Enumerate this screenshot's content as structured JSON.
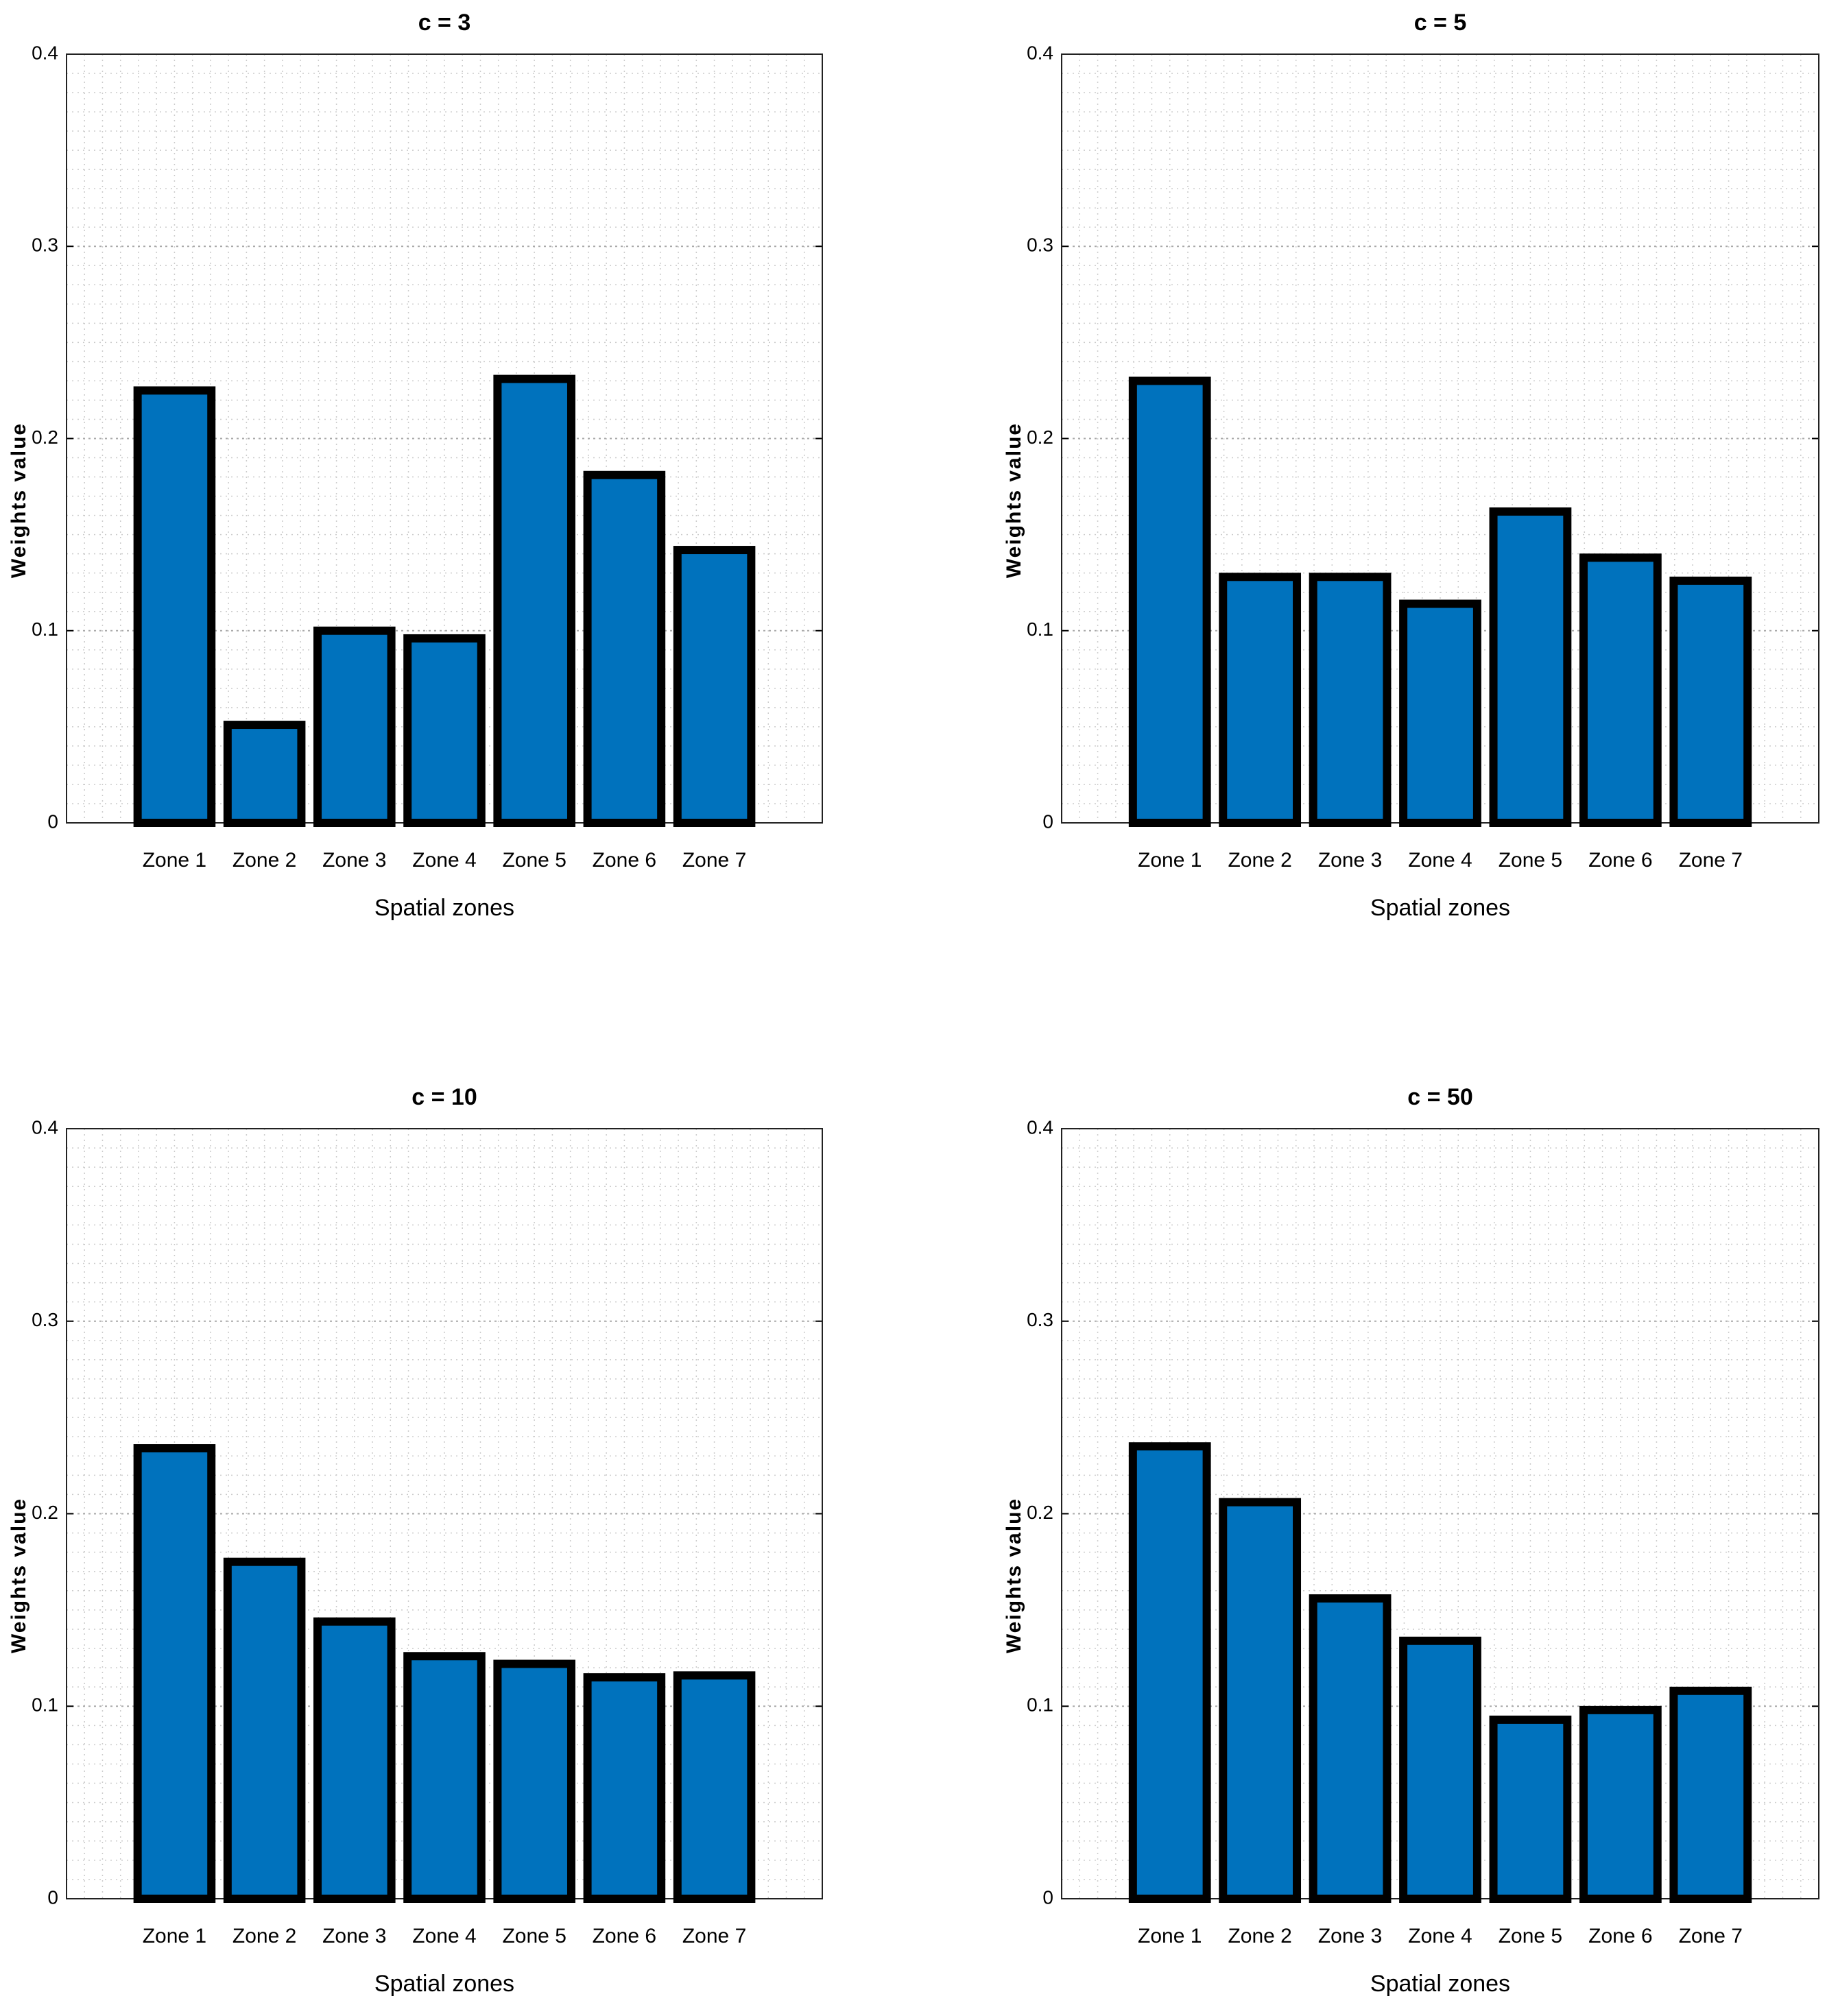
{
  "chart_data": [
    {
      "type": "bar",
      "title": "c = 3",
      "xlabel": "Spatial zones",
      "ylabel": "Weights value",
      "categories": [
        "Zone 1",
        "Zone 2",
        "Zone 3",
        "Zone 4",
        "Zone 5",
        "Zone 6",
        "Zone 7"
      ],
      "values": [
        0.225,
        0.051,
        0.1,
        0.096,
        0.231,
        0.181,
        0.142
      ],
      "color": "#0072bd",
      "ylim": [
        0,
        0.4
      ],
      "yticks": [
        0,
        0.1,
        0.2,
        0.3,
        0.4
      ],
      "grid": true
    },
    {
      "type": "bar",
      "title": "c = 5",
      "xlabel": "Spatial zones",
      "ylabel": "Weights value",
      "categories": [
        "Zone 1",
        "Zone 2",
        "Zone 3",
        "Zone 4",
        "Zone 5",
        "Zone 6",
        "Zone 7"
      ],
      "values": [
        0.23,
        0.128,
        0.128,
        0.114,
        0.162,
        0.138,
        0.126
      ],
      "color": "#0072bd",
      "ylim": [
        0,
        0.4
      ],
      "yticks": [
        0,
        0.1,
        0.2,
        0.3,
        0.4
      ],
      "grid": true
    },
    {
      "type": "bar",
      "title": "c = 10",
      "xlabel": "Spatial zones",
      "ylabel": "Weights value",
      "categories": [
        "Zone 1",
        "Zone 2",
        "Zone 3",
        "Zone 4",
        "Zone 5",
        "Zone 6",
        "Zone 7"
      ],
      "values": [
        0.234,
        0.175,
        0.144,
        0.126,
        0.122,
        0.115,
        0.116
      ],
      "color": "#0072bd",
      "ylim": [
        0,
        0.4
      ],
      "yticks": [
        0,
        0.1,
        0.2,
        0.3,
        0.4
      ],
      "grid": true
    },
    {
      "type": "bar",
      "title": "c = 50",
      "xlabel": "Spatial zones",
      "ylabel": "Weights value",
      "categories": [
        "Zone 1",
        "Zone 2",
        "Zone 3",
        "Zone 4",
        "Zone 5",
        "Zone 6",
        "Zone 7"
      ],
      "values": [
        0.235,
        0.206,
        0.156,
        0.134,
        0.093,
        0.098,
        0.108
      ],
      "color": "#0072bd",
      "ylim": [
        0,
        0.4
      ],
      "yticks": [
        0,
        0.1,
        0.2,
        0.3,
        0.4
      ],
      "grid": true
    }
  ]
}
